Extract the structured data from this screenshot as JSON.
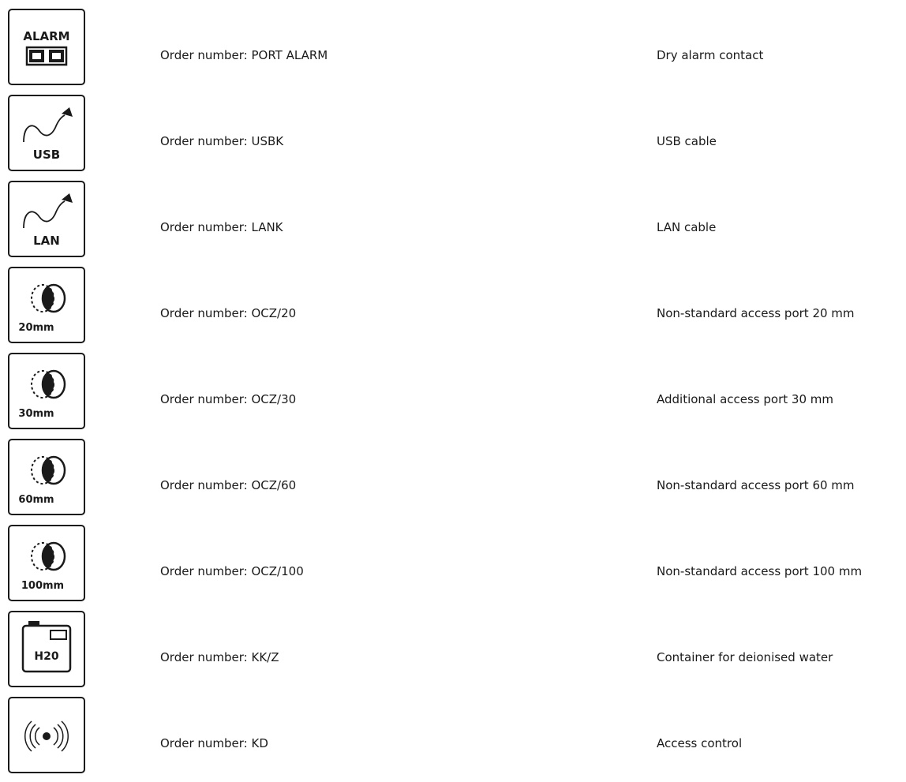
{
  "accessories": [
    {
      "icon": "alarm-icon",
      "icon_text": "ALARM",
      "order_number": "Order number: PORT ALARM",
      "description": "Dry alarm contact"
    },
    {
      "icon": "usb-cable-icon",
      "icon_text": "USB",
      "order_number": "Order number: USBK",
      "description": "USB cable"
    },
    {
      "icon": "lan-cable-icon",
      "icon_text": "LAN",
      "order_number": "Order number: LANK",
      "description": "LAN cable"
    },
    {
      "icon": "access-port-icon",
      "icon_text": "20mm",
      "order_number": "Order number: OCZ/20",
      "description": "Non-standard access port 20 mm"
    },
    {
      "icon": "access-port-icon",
      "icon_text": "30mm",
      "order_number": "Order number: OCZ/30",
      "description": "Additional access port 30 mm"
    },
    {
      "icon": "access-port-icon",
      "icon_text": "60mm",
      "order_number": "Order number: OCZ/60",
      "description": "Non-standard access port 60 mm"
    },
    {
      "icon": "access-port-icon",
      "icon_text": "100mm",
      "order_number": "Order number: OCZ/100",
      "description": "Non-standard access port 100 mm"
    },
    {
      "icon": "water-container-icon",
      "icon_text": "H20",
      "order_number": "Order number: KK/Z",
      "description": "Container for deionised water"
    },
    {
      "icon": "access-control-icon",
      "icon_text": "",
      "order_number": "Order number: KD",
      "description": "Access control"
    }
  ]
}
